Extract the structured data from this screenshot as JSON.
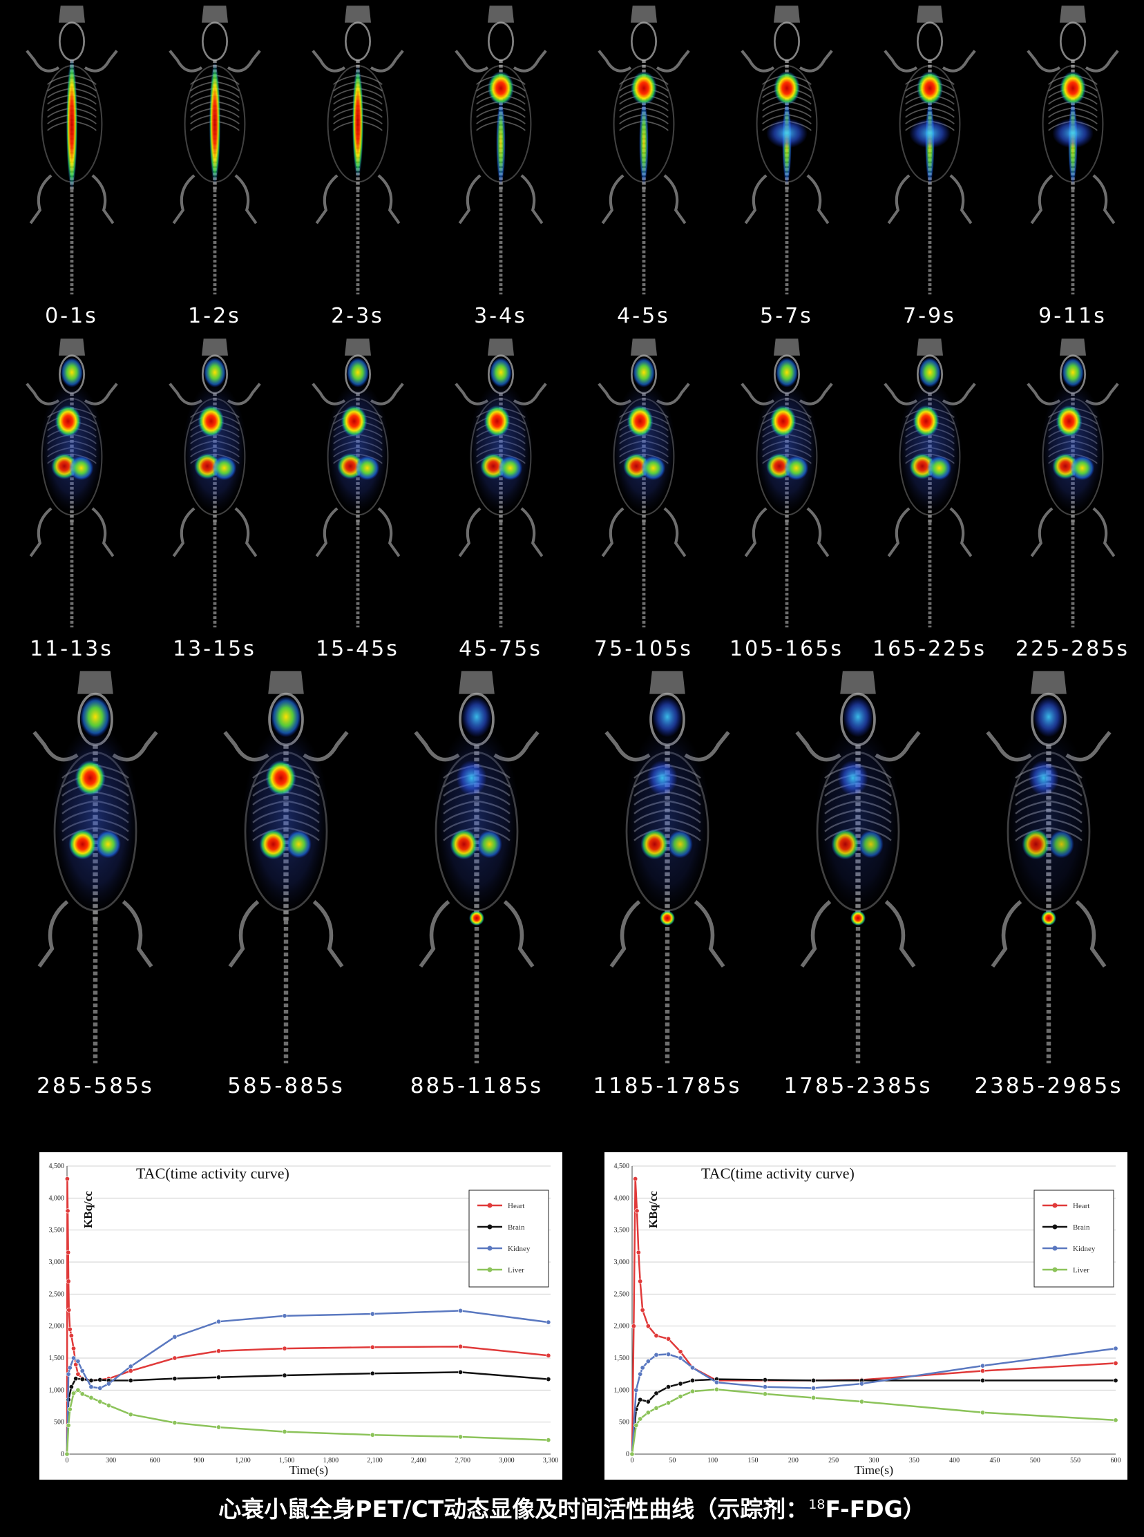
{
  "frames_row1": [
    "0-1s",
    "1-2s",
    "2-3s",
    "3-4s",
    "4-5s",
    "5-7s",
    "7-9s",
    "9-11s"
  ],
  "frames_row2": [
    "11-13s",
    "13-15s",
    "15-45s",
    "45-75s",
    "75-105s",
    "105-165s",
    "165-225s",
    "225-285s"
  ],
  "frames_row3": [
    "285-585s",
    "585-885s",
    "885-1185s",
    "1185-1785s",
    "1785-2385s",
    "2385-2985s"
  ],
  "caption": {
    "main": "心衰小鼠全身PET/CT动态显像及时间活性曲线（示踪剂：",
    "isotope": "18",
    "tracer": "F-FDG）"
  },
  "colors": {
    "heart": "#e03a3a",
    "brain": "#111111",
    "kidney": "#5a78c0",
    "liver": "#8cc35a"
  },
  "chart_data": [
    {
      "type": "line",
      "title": "TAC(time activity curve)",
      "xlabel": "Time(s)",
      "ylabel": "KBq/cc",
      "xlim": [
        0,
        3300
      ],
      "ylim": [
        0,
        4500
      ],
      "xticks": [
        "0",
        "300",
        "600",
        "900",
        "1,200",
        "1,500",
        "1,800",
        "2,100",
        "2,400",
        "2,700",
        "3,000",
        "3,300"
      ],
      "yticks": [
        "0",
        "500",
        "1,000",
        "1,500",
        "2,000",
        "2,500",
        "3,000",
        "3,500",
        "4,000",
        "4,500"
      ],
      "grid": true,
      "legend": "top-right",
      "series": [
        {
          "name": "Heart",
          "x": [
            0,
            2,
            5,
            8,
            10,
            13,
            20,
            30,
            45,
            60,
            75,
            105,
            165,
            225,
            285,
            435,
            735,
            1035,
            1485,
            2085,
            2685,
            3285
          ],
          "y": [
            0,
            4300,
            3800,
            3150,
            2700,
            2250,
            1950,
            1850,
            1650,
            1400,
            1250,
            1180,
            1150,
            1160,
            1180,
            1300,
            1500,
            1610,
            1650,
            1670,
            1680,
            1540
          ]
        },
        {
          "name": "Brain",
          "x": [
            0,
            10,
            30,
            60,
            105,
            165,
            225,
            285,
            435,
            735,
            1035,
            1485,
            2085,
            2685,
            3285
          ],
          "y": [
            0,
            850,
            1050,
            1180,
            1170,
            1150,
            1160,
            1150,
            1150,
            1180,
            1200,
            1230,
            1260,
            1280,
            1170
          ]
        },
        {
          "name": "Kidney",
          "x": [
            0,
            10,
            20,
            45,
            75,
            105,
            165,
            225,
            285,
            435,
            735,
            1035,
            1485,
            2085,
            2685,
            3285
          ],
          "y": [
            0,
            1250,
            1350,
            1500,
            1450,
            1300,
            1050,
            1030,
            1100,
            1370,
            1830,
            2070,
            2160,
            2190,
            2240,
            2060
          ]
        },
        {
          "name": "Liver",
          "x": [
            0,
            10,
            20,
            45,
            75,
            105,
            165,
            225,
            285,
            435,
            735,
            1035,
            1485,
            2085,
            2685,
            3285
          ],
          "y": [
            0,
            450,
            700,
            950,
            1000,
            940,
            880,
            820,
            760,
            620,
            490,
            420,
            350,
            300,
            270,
            220
          ]
        }
      ]
    },
    {
      "type": "line",
      "title": "TAC(time activity curve)",
      "xlabel": "Time(s)",
      "ylabel": "KBq/cc",
      "xlim": [
        0,
        600
      ],
      "ylim": [
        0,
        4500
      ],
      "xticks": [
        "0",
        "50",
        "100",
        "150",
        "200",
        "250",
        "300",
        "350",
        "400",
        "450",
        "500",
        "550",
        "600"
      ],
      "yticks": [
        "0",
        "500",
        "1,000",
        "1,500",
        "2,000",
        "2,500",
        "3,000",
        "3,500",
        "4,000",
        "4,500"
      ],
      "grid": true,
      "legend": "top-right",
      "series": [
        {
          "name": "Heart",
          "x": [
            0,
            2,
            4,
            6,
            8,
            10,
            13,
            20,
            30,
            45,
            60,
            75,
            105,
            165,
            225,
            285,
            435,
            600
          ],
          "y": [
            0,
            2000,
            4300,
            3800,
            3150,
            2700,
            2250,
            2000,
            1850,
            1800,
            1600,
            1350,
            1150,
            1150,
            1150,
            1160,
            1300,
            1420
          ]
        },
        {
          "name": "Brain",
          "x": [
            0,
            5,
            10,
            20,
            30,
            45,
            60,
            75,
            105,
            165,
            225,
            285,
            435,
            600
          ],
          "y": [
            0,
            700,
            850,
            820,
            950,
            1050,
            1100,
            1150,
            1170,
            1160,
            1150,
            1150,
            1150,
            1150
          ]
        },
        {
          "name": "Kidney",
          "x": [
            0,
            5,
            10,
            13,
            20,
            30,
            45,
            60,
            75,
            105,
            165,
            225,
            285,
            435,
            600
          ],
          "y": [
            0,
            1000,
            1250,
            1350,
            1450,
            1550,
            1560,
            1500,
            1350,
            1120,
            1050,
            1030,
            1100,
            1380,
            1650
          ]
        },
        {
          "name": "Liver",
          "x": [
            0,
            5,
            10,
            20,
            30,
            45,
            60,
            75,
            105,
            165,
            225,
            285,
            435,
            600
          ],
          "y": [
            0,
            450,
            550,
            650,
            720,
            800,
            900,
            980,
            1010,
            940,
            880,
            820,
            650,
            530
          ]
        }
      ]
    }
  ]
}
